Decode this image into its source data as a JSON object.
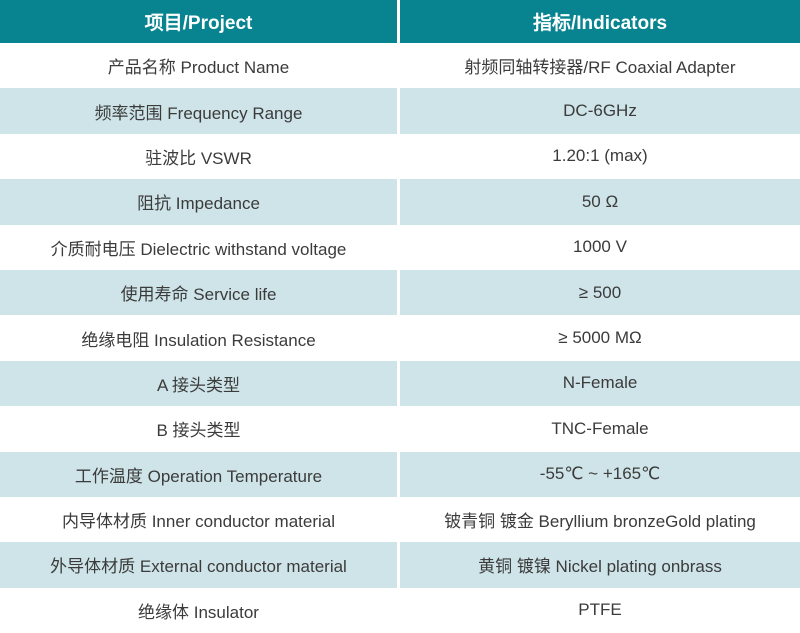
{
  "colors": {
    "header_bg": "#078490",
    "header_text": "#ffffff",
    "row_bg": "#ffffff",
    "row_alt_bg": "#cee4e8",
    "cell_text": "#3b3b3b",
    "column_divider": "#ffffff"
  },
  "table": {
    "header": {
      "project": "项目/Project",
      "indicators": "指标/Indicators"
    },
    "rows": [
      {
        "project": "产品名称 Product Name",
        "indicator": "射频同轴转接器/RF Coaxial Adapter"
      },
      {
        "project": "频率范围 Frequency Range",
        "indicator": "DC-6GHz"
      },
      {
        "project": "驻波比 VSWR",
        "indicator": "1.20:1 (max)"
      },
      {
        "project": "阻抗 Impedance",
        "indicator": "50 Ω"
      },
      {
        "project": "介质耐电压 Dielectric withstand voltage",
        "indicator": "1000 V"
      },
      {
        "project": "使用寿命 Service life",
        "indicator": "≥ 500"
      },
      {
        "project": "绝缘电阻 Insulation Resistance",
        "indicator": "≥ 5000 MΩ"
      },
      {
        "project": "A 接头类型",
        "indicator": "N-Female"
      },
      {
        "project": "B 接头类型",
        "indicator": "TNC-Female"
      },
      {
        "project": "工作温度 Operation Temperature",
        "indicator": "-55℃ ~ +165℃"
      },
      {
        "project": "内导体材质 Inner conductor material",
        "indicator": "铍青铜 镀金 Beryllium bronzeGold plating"
      },
      {
        "project": "外导体材质 External conductor material",
        "indicator": "黄铜 镀镍 Nickel plating onbrass"
      },
      {
        "project": "绝缘体 Insulator",
        "indicator": "PTFE"
      }
    ]
  }
}
